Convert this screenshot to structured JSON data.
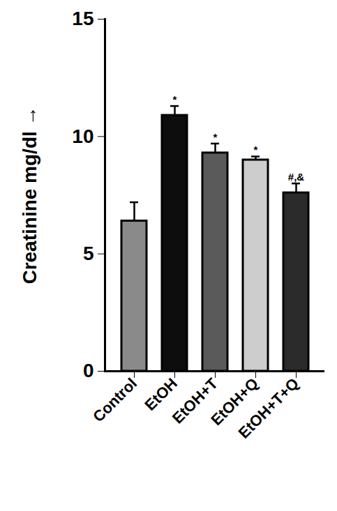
{
  "chart_data": {
    "type": "bar",
    "y_label": "Creatinine mg/dl",
    "categories": [
      "Control",
      "EtOH",
      "EtOH+T",
      "EtOH+Q",
      "EtOH+T+Q"
    ],
    "values": [
      6.4,
      10.9,
      9.3,
      9.0,
      7.6
    ],
    "errors": [
      0.8,
      0.4,
      0.4,
      0.15,
      0.4
    ],
    "annotations": [
      null,
      "*",
      "*",
      "*",
      "#,&"
    ],
    "colors": [
      "#8a8a8a",
      "#0d0d0d",
      "#5a5a5a",
      "#cdcdcd",
      "#2b2b2b"
    ],
    "ylim": [
      0,
      15
    ],
    "yticks": [
      0,
      5,
      10,
      15
    ],
    "grid": false
  }
}
